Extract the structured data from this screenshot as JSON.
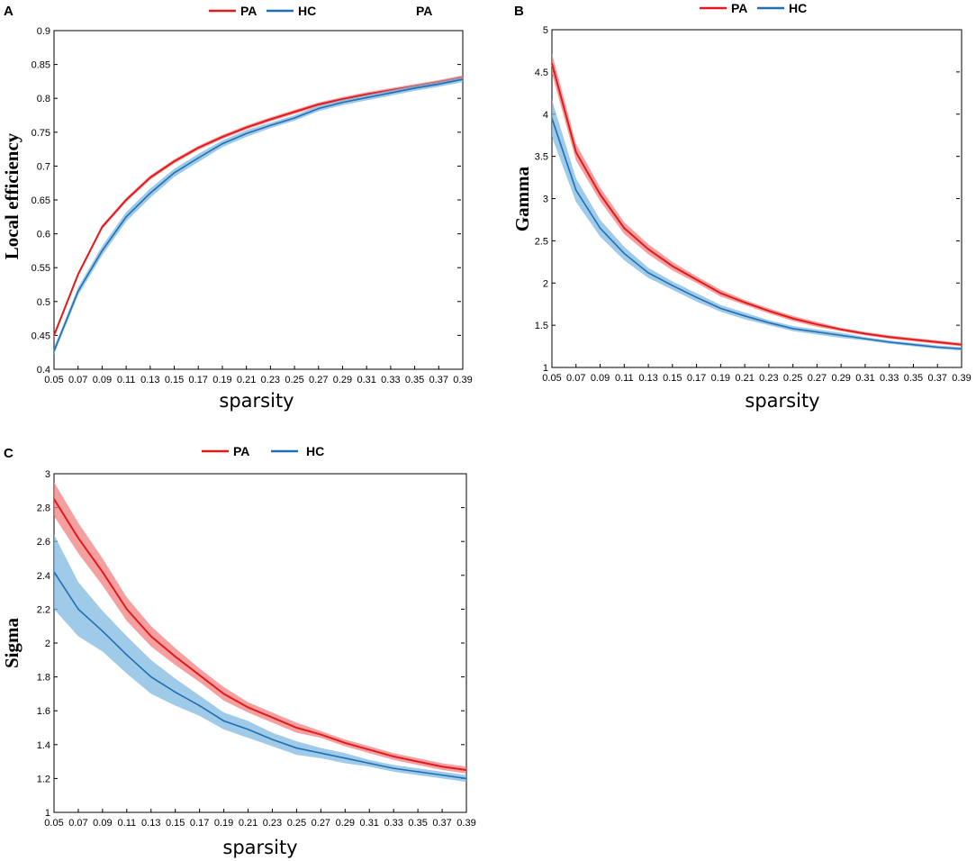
{
  "colors": {
    "pa_line": "#e31a1c",
    "pa_band": "#f08080",
    "hc_line": "#1f6fb4",
    "hc_band": "#7fb8e0",
    "axis": "#000000"
  },
  "legend": {
    "pa": "PA",
    "hc": "HC"
  },
  "chart_data": [
    {
      "panel": "A",
      "type": "line",
      "title": "",
      "xlabel": "sparsity",
      "ylabel": "Local efficiency",
      "legend_extra": "PA",
      "x": [
        0.05,
        0.07,
        0.09,
        0.11,
        0.13,
        0.15,
        0.17,
        0.19,
        0.21,
        0.23,
        0.25,
        0.27,
        0.29,
        0.31,
        0.33,
        0.35,
        0.37,
        0.39
      ],
      "xticklabels": [
        "0.05",
        "0.07",
        "0.09",
        "0.11",
        "0.13",
        "0.15",
        "0.17",
        "0.19",
        "0.21",
        "0.23",
        "0.25",
        "0.27",
        "0.29",
        "0.31",
        "0.33",
        "0.35",
        "0.37",
        "0.39"
      ],
      "ylim": [
        0.4,
        0.9
      ],
      "yticks": [
        0.4,
        0.45,
        0.5,
        0.55,
        0.6,
        0.65,
        0.7,
        0.75,
        0.8,
        0.85,
        0.9
      ],
      "yticklabels": [
        "0.4",
        "0.45",
        "0.5",
        "0.55",
        "0.6",
        "0.65",
        "0.7",
        "0.75",
        "0.8",
        "0.85",
        "0.9"
      ],
      "series": [
        {
          "name": "PA",
          "values": [
            0.45,
            0.54,
            0.61,
            0.65,
            0.683,
            0.707,
            0.727,
            0.743,
            0.757,
            0.769,
            0.78,
            0.791,
            0.799,
            0.806,
            0.812,
            0.818,
            0.824,
            0.831
          ],
          "err": [
            0.003,
            0.003,
            0.003,
            0.003,
            0.003,
            0.003,
            0.003,
            0.003,
            0.003,
            0.003,
            0.003,
            0.003,
            0.003,
            0.003,
            0.003,
            0.003,
            0.003,
            0.003
          ]
        },
        {
          "name": "HC",
          "values": [
            0.427,
            0.515,
            0.575,
            0.625,
            0.66,
            0.69,
            0.712,
            0.733,
            0.748,
            0.76,
            0.771,
            0.785,
            0.794,
            0.801,
            0.808,
            0.815,
            0.821,
            0.828
          ],
          "err": [
            0.005,
            0.006,
            0.007,
            0.007,
            0.007,
            0.006,
            0.006,
            0.005,
            0.005,
            0.004,
            0.004,
            0.004,
            0.004,
            0.004,
            0.004,
            0.004,
            0.004,
            0.004
          ]
        }
      ]
    },
    {
      "panel": "B",
      "type": "line",
      "title": "",
      "xlabel": "sparsity",
      "ylabel": "Gamma",
      "legend_extra": "",
      "x": [
        0.05,
        0.07,
        0.09,
        0.11,
        0.13,
        0.15,
        0.17,
        0.19,
        0.21,
        0.23,
        0.25,
        0.27,
        0.29,
        0.31,
        0.33,
        0.35,
        0.37,
        0.39
      ],
      "xticklabels": [
        "0.05",
        "0.07",
        "0.09",
        "0.11",
        "0.13",
        "0.15",
        "0.17",
        "0.19",
        "0.21",
        "0.23",
        "0.25",
        "0.27",
        "0.29",
        "0.31",
        "0.33",
        "0.35",
        "0.37",
        "0.39"
      ],
      "ylim": [
        1,
        5
      ],
      "yticks": [
        1,
        1.5,
        2,
        2.5,
        3,
        3.5,
        4,
        4.5,
        5
      ],
      "yticklabels": [
        "1",
        "1.5",
        "2",
        "2.5",
        "3",
        "3.5",
        "4",
        "4.5",
        "5"
      ],
      "series": [
        {
          "name": "PA",
          "values": [
            4.6,
            3.55,
            3.05,
            2.65,
            2.4,
            2.2,
            2.04,
            1.88,
            1.77,
            1.67,
            1.58,
            1.51,
            1.45,
            1.4,
            1.36,
            1.33,
            1.3,
            1.27
          ],
          "err": [
            0.12,
            0.1,
            0.08,
            0.07,
            0.06,
            0.05,
            0.04,
            0.04,
            0.03,
            0.03,
            0.03,
            0.03,
            0.02,
            0.02,
            0.02,
            0.02,
            0.02,
            0.02
          ]
        },
        {
          "name": "HC",
          "values": [
            3.95,
            3.1,
            2.65,
            2.35,
            2.12,
            1.97,
            1.83,
            1.7,
            1.61,
            1.53,
            1.46,
            1.42,
            1.38,
            1.34,
            1.3,
            1.27,
            1.24,
            1.22
          ],
          "err": [
            0.22,
            0.14,
            0.1,
            0.08,
            0.06,
            0.05,
            0.05,
            0.04,
            0.04,
            0.03,
            0.03,
            0.03,
            0.03,
            0.02,
            0.02,
            0.02,
            0.02,
            0.02
          ]
        }
      ]
    },
    {
      "panel": "C",
      "type": "line",
      "title": "",
      "xlabel": "sparsity",
      "ylabel": "Sigma",
      "legend_extra": "",
      "x": [
        0.05,
        0.07,
        0.09,
        0.11,
        0.13,
        0.15,
        0.17,
        0.19,
        0.21,
        0.23,
        0.25,
        0.27,
        0.29,
        0.31,
        0.33,
        0.35,
        0.37,
        0.39
      ],
      "xticklabels": [
        "0.05",
        "0.07",
        "0.09",
        "0.11",
        "0.13",
        "0.15",
        "0.17",
        "0.19",
        "0.21",
        "0.23",
        "0.25",
        "0.27",
        "0.29",
        "0.31",
        "0.33",
        "0.35",
        "0.37",
        "0.39"
      ],
      "ylim": [
        1,
        3
      ],
      "yticks": [
        1,
        1.2,
        1.4,
        1.6,
        1.8,
        2,
        2.2,
        2.4,
        2.6,
        2.8,
        3
      ],
      "yticklabels": [
        "1",
        "1.2",
        "1.4",
        "1.6",
        "1.8",
        "2",
        "2.2",
        "2.4",
        "2.6",
        "2.8",
        "3"
      ],
      "series": [
        {
          "name": "PA",
          "values": [
            2.85,
            2.62,
            2.42,
            2.2,
            2.04,
            1.92,
            1.81,
            1.7,
            1.62,
            1.56,
            1.5,
            1.46,
            1.41,
            1.37,
            1.33,
            1.3,
            1.27,
            1.25
          ],
          "err": [
            0.1,
            0.09,
            0.08,
            0.07,
            0.06,
            0.05,
            0.04,
            0.04,
            0.03,
            0.03,
            0.03,
            0.02,
            0.02,
            0.02,
            0.02,
            0.02,
            0.02,
            0.02
          ]
        },
        {
          "name": "HC",
          "values": [
            2.42,
            2.2,
            2.07,
            1.93,
            1.8,
            1.71,
            1.63,
            1.54,
            1.49,
            1.43,
            1.38,
            1.35,
            1.32,
            1.29,
            1.26,
            1.24,
            1.22,
            1.2
          ],
          "err": [
            0.22,
            0.16,
            0.12,
            0.11,
            0.1,
            0.08,
            0.06,
            0.05,
            0.05,
            0.04,
            0.04,
            0.03,
            0.03,
            0.02,
            0.02,
            0.02,
            0.02,
            0.02
          ]
        }
      ]
    }
  ]
}
